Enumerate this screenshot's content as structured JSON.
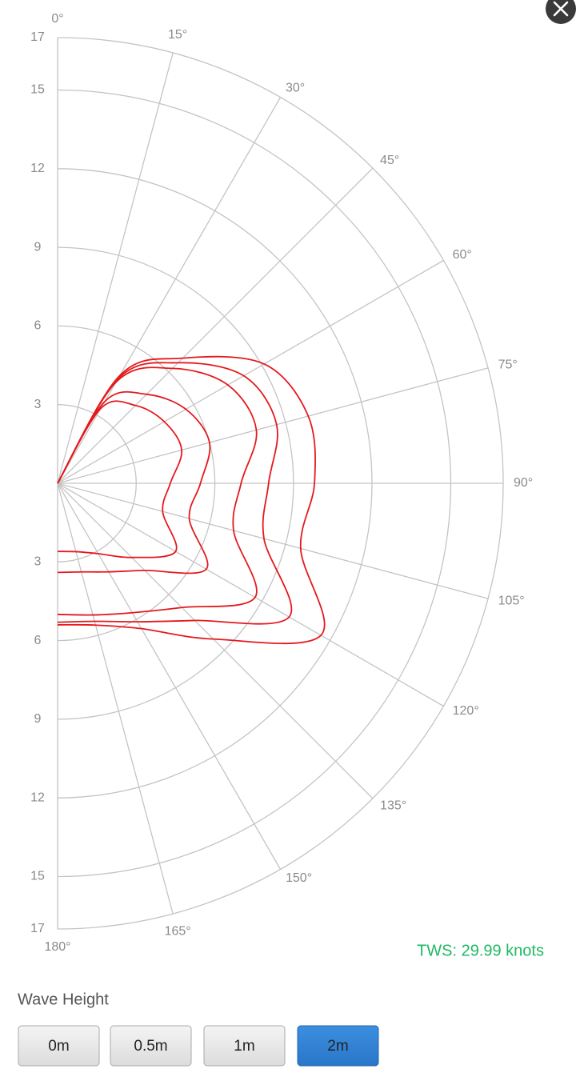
{
  "chart_data": {
    "type": "polar",
    "x": [
      0,
      30,
      45,
      60,
      75,
      90,
      105,
      120,
      135,
      150,
      165,
      180
    ],
    "series": [
      {
        "color": "#e5191d",
        "values": [
          0,
          3.3,
          4.2,
          4.7,
          4.9,
          4.3,
          4.15,
          5.2,
          4.0,
          3.1,
          2.7,
          2.6
        ]
      },
      {
        "color": "#e5191d",
        "values": [
          0,
          3.6,
          4.8,
          5.65,
          6.0,
          5.45,
          5.2,
          6.55,
          4.7,
          3.9,
          3.5,
          3.4
        ]
      },
      {
        "color": "#e5191d",
        "values": [
          0,
          4.45,
          6.2,
          7.5,
          7.85,
          7.0,
          6.95,
          8.7,
          6.7,
          5.7,
          5.2,
          5.0
        ]
      },
      {
        "color": "#e5191d",
        "values": [
          0,
          4.6,
          6.5,
          8.2,
          8.65,
          8.05,
          8.15,
          10.2,
          7.4,
          6.1,
          5.45,
          5.3
        ]
      },
      {
        "color": "#e5191d",
        "values": [
          0,
          4.75,
          6.75,
          9.1,
          9.9,
          9.8,
          9.6,
          11.6,
          8.4,
          6.4,
          5.6,
          5.4
        ]
      }
    ],
    "xlim": [
      0,
      180
    ],
    "xticks": [
      {
        "value": 0,
        "label": "0°"
      },
      {
        "value": 15,
        "label": "15°"
      },
      {
        "value": 30,
        "label": "30°"
      },
      {
        "value": 45,
        "label": "45°"
      },
      {
        "value": 60,
        "label": "60°"
      },
      {
        "value": 75,
        "label": "75°"
      },
      {
        "value": 90,
        "label": "90°"
      },
      {
        "value": 105,
        "label": "105°"
      },
      {
        "value": 120,
        "label": "120°"
      },
      {
        "value": 135,
        "label": "135°"
      },
      {
        "value": 150,
        "label": "150°"
      },
      {
        "value": 165,
        "label": "165°"
      },
      {
        "value": 180,
        "label": "180°"
      }
    ],
    "ylim": [
      0,
      17
    ],
    "yticks": [
      3,
      6,
      9,
      12,
      15,
      17
    ],
    "grid": true
  },
  "ui": {
    "tws": "TWS: 29.99 knots",
    "wave_height_label": "Wave Height",
    "buttons": [
      "0m",
      "0.5m",
      "1m",
      "2m"
    ],
    "selected": 3
  }
}
